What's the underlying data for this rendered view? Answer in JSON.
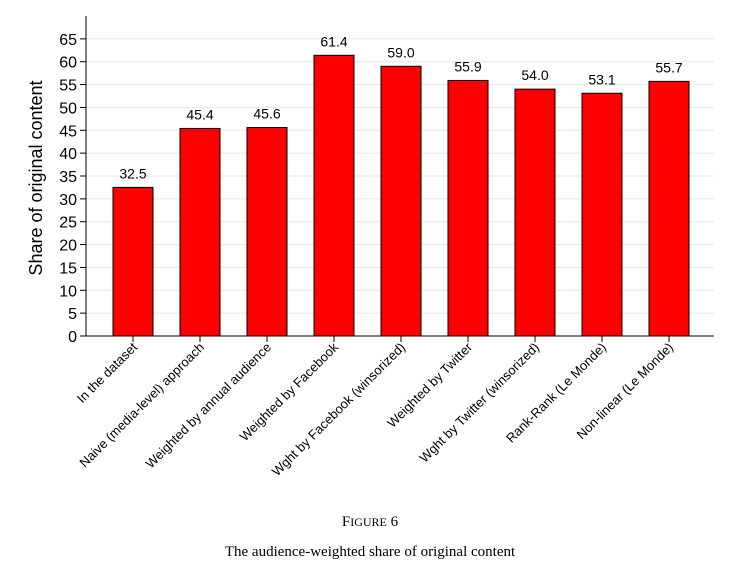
{
  "chart_data": {
    "type": "bar",
    "categories": [
      "In the dataset",
      "Naive (media-level) approach",
      "Weighted by annual audience",
      "Weighted by Facebook",
      "Wght by Facebook (winsorized)",
      "Weighted by Twitter",
      "Wght by Twitter (winsorized)",
      "Rank-Rank (Le Monde)",
      "Non-linear (Le Monde)"
    ],
    "values": [
      32.5,
      45.4,
      45.6,
      61.4,
      59.0,
      55.9,
      54.0,
      53.1,
      55.7
    ],
    "value_labels": [
      "32.5",
      "45.4",
      "45.6",
      "61.4",
      "59.0",
      "55.9",
      "54.0",
      "53.1",
      "55.7"
    ],
    "ylabel": "Share of original content",
    "xlabel": "",
    "ylim": [
      0,
      70
    ],
    "yticks": [
      0,
      5,
      10,
      15,
      20,
      25,
      30,
      35,
      40,
      45,
      50,
      55,
      60,
      65
    ],
    "grid": "horizontal",
    "bar_color": "#ff0000",
    "bar_edge_color": "#000000",
    "grid_color": "#e6e6e6",
    "legend": "none"
  },
  "caption": {
    "figure_first": "F",
    "figure_rest": "IGURE",
    "figure_number": "6",
    "title": "The audience-weighted share of original content"
  }
}
